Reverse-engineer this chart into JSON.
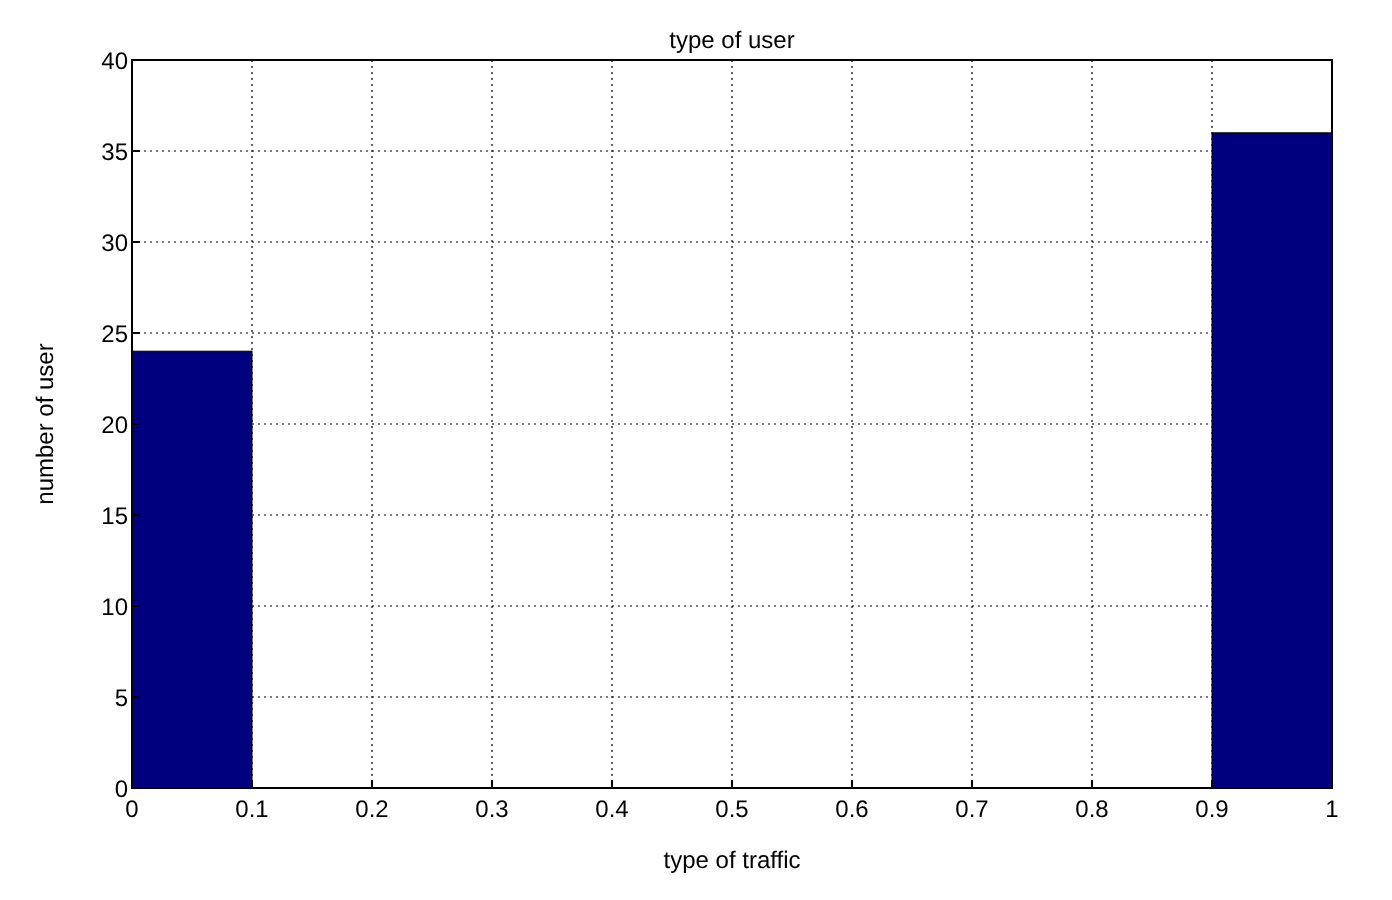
{
  "chart_data": {
    "type": "histogram",
    "title": "type of user",
    "xlabel": "type of traffic",
    "ylabel": "number of user",
    "bins": [
      0,
      0.1,
      0.2,
      0.3,
      0.4,
      0.5,
      0.6,
      0.7,
      0.8,
      0.9,
      1
    ],
    "values": [
      24,
      0,
      0,
      0,
      0,
      0,
      0,
      0,
      0,
      36
    ],
    "color": "#00007f",
    "xlim": [
      0,
      1
    ],
    "xticks": [
      0,
      0.1,
      0.2,
      0.3,
      0.4,
      0.5,
      0.6,
      0.7,
      0.8,
      0.9,
      1
    ],
    "ylim": [
      0,
      40
    ],
    "yticks": [
      0,
      5,
      10,
      15,
      20,
      25,
      30,
      35,
      40
    ],
    "grid": true
  }
}
